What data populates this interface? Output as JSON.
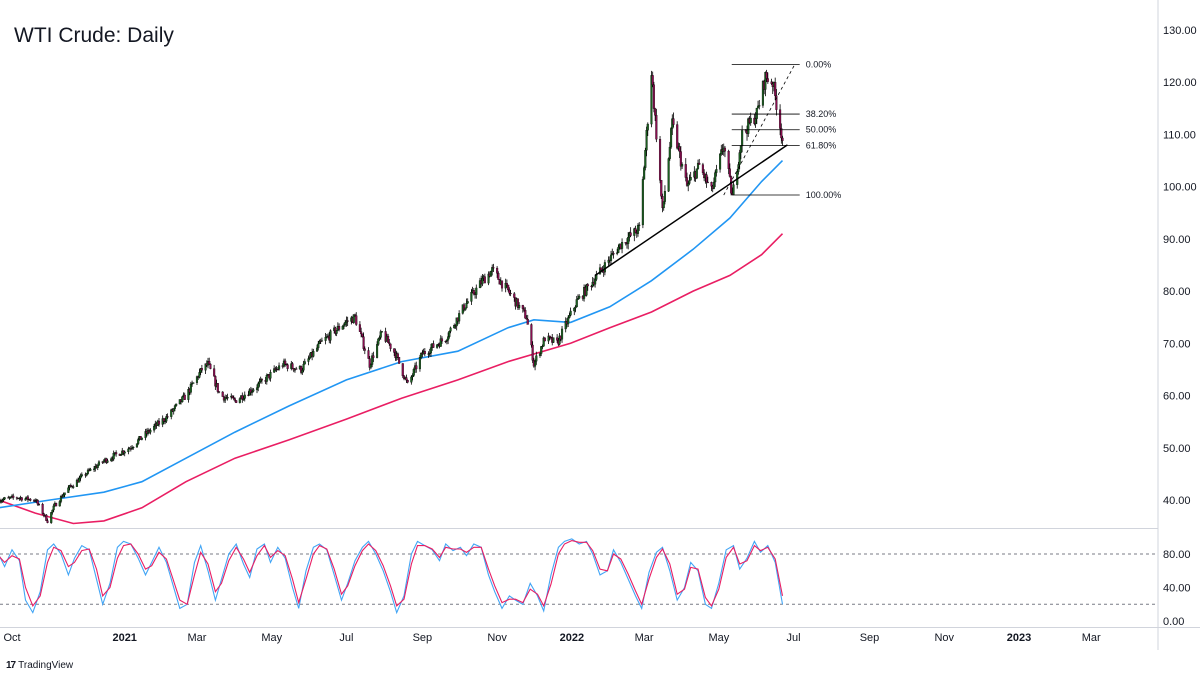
{
  "title": "WTI Crude: Daily",
  "brand": {
    "logo": "17",
    "name": "TradingView"
  },
  "colors": {
    "up": "#26a69a",
    "down": "#ef5350",
    "candle_body_up": "#1b5e20",
    "candle_body_down": "#880e4f",
    "ma_fast": "#2196f3",
    "ma_slow": "#e91e63",
    "trendline": "#000000",
    "rsi_k": "#42a5f5",
    "rsi_d": "#e91e63",
    "grid": "#e0e3eb",
    "axis_text": "#131722"
  },
  "chart_data": [
    {
      "type": "line",
      "name": "price-panel",
      "yticks": [
        "130.00",
        "120.00",
        "110.00",
        "100.00",
        "90.00",
        "80.00",
        "70.00",
        "60.00",
        "50.00",
        "40.00"
      ],
      "ylim": [
        34,
        131
      ],
      "xticks": [
        "Oct",
        "2021",
        "Mar",
        "May",
        "Jul",
        "Sep",
        "Nov",
        "2022",
        "Mar",
        "May",
        "Jul",
        "Sep",
        "Nov",
        "2023",
        "Mar"
      ],
      "xlim": [
        "2020-10-01",
        "2023-03-31"
      ],
      "price_path": [
        [
          "2020-09-20",
          40
        ],
        [
          "2020-10-05",
          40.5
        ],
        [
          "2020-10-20",
          40
        ],
        [
          "2020-10-30",
          36
        ],
        [
          "2020-11-05",
          39
        ],
        [
          "2020-11-15",
          42
        ],
        [
          "2020-11-30",
          45
        ],
        [
          "2020-12-15",
          47.5
        ],
        [
          "2021-01-05",
          50
        ],
        [
          "2021-01-20",
          53
        ],
        [
          "2021-02-05",
          56
        ],
        [
          "2021-02-20",
          60
        ],
        [
          "2021-03-05",
          65
        ],
        [
          "2021-03-10",
          66
        ],
        [
          "2021-03-20",
          60
        ],
        [
          "2021-04-01",
          59
        ],
        [
          "2021-04-20",
          62
        ],
        [
          "2021-05-10",
          66
        ],
        [
          "2021-05-25",
          65
        ],
        [
          "2021-06-10",
          70
        ],
        [
          "2021-06-30",
          74
        ],
        [
          "2021-07-08",
          75
        ],
        [
          "2021-07-20",
          66
        ],
        [
          "2021-07-30",
          72
        ],
        [
          "2021-08-10",
          68
        ],
        [
          "2021-08-20",
          62
        ],
        [
          "2021-09-01",
          68
        ],
        [
          "2021-09-20",
          71
        ],
        [
          "2021-10-05",
          77
        ],
        [
          "2021-10-20",
          82
        ],
        [
          "2021-10-28",
          84
        ],
        [
          "2021-11-10",
          80
        ],
        [
          "2021-11-25",
          75
        ],
        [
          "2021-12-01",
          66
        ],
        [
          "2021-12-10",
          71
        ],
        [
          "2021-12-20",
          70
        ],
        [
          "2022-01-05",
          78
        ],
        [
          "2022-01-25",
          84
        ],
        [
          "2022-02-10",
          89
        ],
        [
          "2022-02-25",
          92
        ],
        [
          "2022-03-07",
          122
        ],
        [
          "2022-03-16",
          95
        ],
        [
          "2022-03-24",
          112
        ],
        [
          "2022-04-05",
          100
        ],
        [
          "2022-04-15",
          104
        ],
        [
          "2022-04-25",
          99
        ],
        [
          "2022-05-05",
          108
        ],
        [
          "2022-05-12",
          98
        ],
        [
          "2022-05-20",
          110
        ],
        [
          "2022-06-01",
          114
        ],
        [
          "2022-06-08",
          121
        ],
        [
          "2022-06-14",
          120
        ],
        [
          "2022-06-22",
          109
        ]
      ],
      "series": [
        {
          "name": "ma_fast",
          "points": [
            [
              "2020-09-20",
              38.5
            ],
            [
              "2020-11-01",
              40
            ],
            [
              "2020-12-15",
              41.5
            ],
            [
              "2021-01-15",
              43.5
            ],
            [
              "2021-02-20",
              48
            ],
            [
              "2021-04-01",
              53
            ],
            [
              "2021-05-15",
              58
            ],
            [
              "2021-07-01",
              63
            ],
            [
              "2021-08-15",
              66.5
            ],
            [
              "2021-09-30",
              68.5
            ],
            [
              "2021-11-10",
              73
            ],
            [
              "2021-12-01",
              74.5
            ],
            [
              "2021-12-31",
              74
            ],
            [
              "2022-02-01",
              77
            ],
            [
              "2022-03-07",
              82
            ],
            [
              "2022-04-10",
              88
            ],
            [
              "2022-05-10",
              94
            ],
            [
              "2022-06-05",
              101
            ],
            [
              "2022-06-22",
              105
            ]
          ]
        },
        {
          "name": "ma_slow",
          "points": [
            [
              "2020-09-20",
              40
            ],
            [
              "2020-10-20",
              37.5
            ],
            [
              "2020-11-20",
              35.5
            ],
            [
              "2020-12-15",
              36
            ],
            [
              "2021-01-15",
              38.5
            ],
            [
              "2021-02-20",
              43.5
            ],
            [
              "2021-04-01",
              48
            ],
            [
              "2021-05-15",
              51.5
            ],
            [
              "2021-07-01",
              55.5
            ],
            [
              "2021-08-15",
              59.5
            ],
            [
              "2021-09-30",
              63
            ],
            [
              "2021-11-10",
              66.5
            ],
            [
              "2021-12-31",
              70
            ],
            [
              "2022-02-01",
              73
            ],
            [
              "2022-03-07",
              76
            ],
            [
              "2022-04-10",
              80
            ],
            [
              "2022-05-10",
              83
            ],
            [
              "2022-06-05",
              87
            ],
            [
              "2022-06-22",
              91
            ]
          ]
        }
      ],
      "trendline": [
        [
          "2022-01-20",
          83
        ],
        [
          "2022-06-26",
          108
        ]
      ],
      "fibonacci": {
        "anchor_low": [
          "2022-05-05",
          98.4
        ],
        "anchor_high": [
          "2022-06-14",
          123.4
        ],
        "levels": [
          {
            "label": "0.00%",
            "value": 123.4
          },
          {
            "label": "38.20%",
            "value": 113.9
          },
          {
            "label": "50.00%",
            "value": 110.9
          },
          {
            "label": "61.80%",
            "value": 107.9
          },
          {
            "label": "100.00%",
            "value": 98.4
          }
        ]
      }
    },
    {
      "type": "line",
      "name": "stochastic-rsi-panel",
      "yticks": [
        "80.00",
        "40.00",
        "0.00"
      ],
      "ylim": [
        -5,
        105
      ],
      "bands": [
        80,
        20
      ],
      "series": [
        {
          "name": "rsi_k",
          "values": [
            80,
            65,
            85,
            72,
            25,
            10,
            35,
            85,
            92,
            80,
            55,
            75,
            90,
            85,
            50,
            20,
            45,
            88,
            95,
            92,
            75,
            55,
            70,
            88,
            70,
            45,
            15,
            20,
            70,
            90,
            60,
            25,
            50,
            80,
            92,
            68,
            52,
            86,
            92,
            70,
            88,
            75,
            40,
            15,
            60,
            88,
            92,
            85,
            55,
            25,
            45,
            72,
            88,
            95,
            80,
            60,
            35,
            10,
            30,
            80,
            95,
            90,
            85,
            72,
            92,
            84,
            88,
            78,
            92,
            88,
            55,
            35,
            15,
            30,
            25,
            20,
            45,
            30,
            12,
            55,
            88,
            95,
            98,
            92,
            95,
            80,
            55,
            60,
            85,
            70,
            50,
            30,
            15,
            58,
            82,
            88,
            60,
            25,
            40,
            70,
            60,
            20,
            15,
            45,
            85,
            90,
            62,
            75,
            95,
            82,
            90,
            70,
            20
          ]
        },
        {
          "name": "rsi_d",
          "values": [
            78,
            70,
            78,
            74,
            40,
            18,
            30,
            70,
            88,
            84,
            65,
            70,
            84,
            86,
            62,
            30,
            40,
            75,
            90,
            92,
            80,
            62,
            66,
            82,
            74,
            52,
            25,
            20,
            55,
            82,
            68,
            35,
            45,
            72,
            88,
            74,
            58,
            78,
            90,
            76,
            84,
            78,
            50,
            22,
            50,
            80,
            90,
            86,
            62,
            32,
            42,
            66,
            84,
            92,
            84,
            66,
            42,
            18,
            26,
            68,
            90,
            90,
            86,
            76,
            88,
            86,
            86,
            82,
            88,
            88,
            62,
            42,
            22,
            26,
            26,
            22,
            38,
            32,
            18,
            44,
            80,
            92,
            96,
            94,
            94,
            84,
            62,
            60,
            80,
            74,
            56,
            36,
            20,
            50,
            76,
            86,
            68,
            32,
            38,
            64,
            62,
            28,
            18,
            38,
            76,
            88,
            68,
            72,
            90,
            84,
            88,
            74,
            30
          ]
        }
      ]
    }
  ]
}
